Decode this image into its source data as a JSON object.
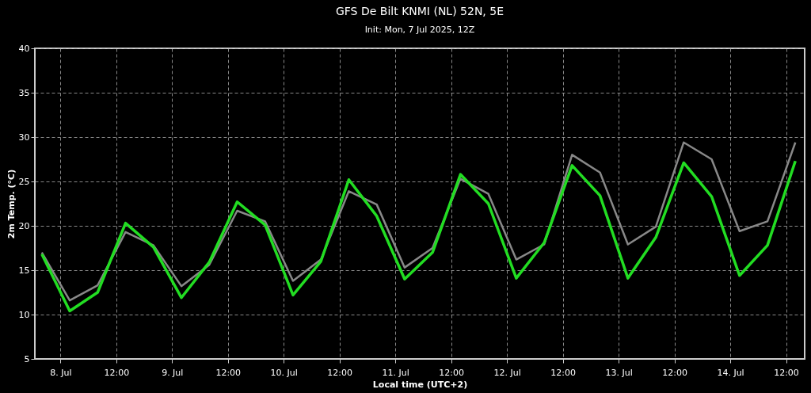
{
  "chart_data": {
    "type": "line",
    "title": "GFS De Bilt KNMI (NL) 52N, 5E",
    "subtitle": "Init: Mon, 7 Jul 2025, 12Z",
    "xlabel": "Local time (UTC+2)",
    "ylabel": "2m Temp. (°C)",
    "x": [
      "2025-07-07T20:00",
      "2025-07-08T02:00",
      "2025-07-08T08:00",
      "2025-07-08T14:00",
      "2025-07-08T20:00",
      "2025-07-09T02:00",
      "2025-07-09T08:00",
      "2025-07-09T14:00",
      "2025-07-09T20:00",
      "2025-07-10T02:00",
      "2025-07-10T08:00",
      "2025-07-10T14:00",
      "2025-07-10T20:00",
      "2025-07-11T02:00",
      "2025-07-11T08:00",
      "2025-07-11T14:00",
      "2025-07-11T20:00",
      "2025-07-12T02:00",
      "2025-07-12T08:00",
      "2025-07-12T14:00",
      "2025-07-12T20:00",
      "2025-07-13T02:00",
      "2025-07-13T08:00",
      "2025-07-13T14:00",
      "2025-07-13T20:00",
      "2025-07-14T02:00",
      "2025-07-14T08:00",
      "2025-07-14T14:00"
    ],
    "series": [
      {
        "color": "#888888",
        "values": [
          17.0,
          11.6,
          13.3,
          19.3,
          17.8,
          13.2,
          15.6,
          21.7,
          20.5,
          13.8,
          16.2,
          23.9,
          22.4,
          15.3,
          17.5,
          25.3,
          23.6,
          16.2,
          17.9,
          28.0,
          26.0,
          17.9,
          19.9,
          29.4,
          27.5,
          19.4,
          20.5,
          29.4
        ]
      },
      {
        "color": "#22dd22",
        "values": [
          16.8,
          10.4,
          12.5,
          20.3,
          17.6,
          11.9,
          15.9,
          22.7,
          20.1,
          12.2,
          16.0,
          25.2,
          21.1,
          14.0,
          17.0,
          25.8,
          22.5,
          14.1,
          18.1,
          26.8,
          23.4,
          14.1,
          18.7,
          27.1,
          23.3,
          14.4,
          17.8,
          27.3
        ]
      }
    ],
    "xlim": [
      "2025-07-07T18:30",
      "2025-07-14T16:00"
    ],
    "xticks": [
      {
        "value": "2025-07-08T00:00",
        "label": "8. Jul"
      },
      {
        "value": "2025-07-08T12:00",
        "label": "12:00"
      },
      {
        "value": "2025-07-09T00:00",
        "label": "9. Jul"
      },
      {
        "value": "2025-07-09T12:00",
        "label": "12:00"
      },
      {
        "value": "2025-07-10T00:00",
        "label": "10. Jul"
      },
      {
        "value": "2025-07-10T12:00",
        "label": "12:00"
      },
      {
        "value": "2025-07-11T00:00",
        "label": "11. Jul"
      },
      {
        "value": "2025-07-11T12:00",
        "label": "12:00"
      },
      {
        "value": "2025-07-12T00:00",
        "label": "12. Jul"
      },
      {
        "value": "2025-07-12T12:00",
        "label": "12:00"
      },
      {
        "value": "2025-07-13T00:00",
        "label": "13. Jul"
      },
      {
        "value": "2025-07-13T12:00",
        "label": "12:00"
      },
      {
        "value": "2025-07-14T00:00",
        "label": "14. Jul"
      },
      {
        "value": "2025-07-14T12:00",
        "label": "12:00"
      }
    ],
    "ylim": [
      5,
      40
    ],
    "yticks": [
      5,
      10,
      15,
      20,
      25,
      30,
      35,
      40
    ],
    "grid": true,
    "marker": "none",
    "line_style": "solid"
  }
}
